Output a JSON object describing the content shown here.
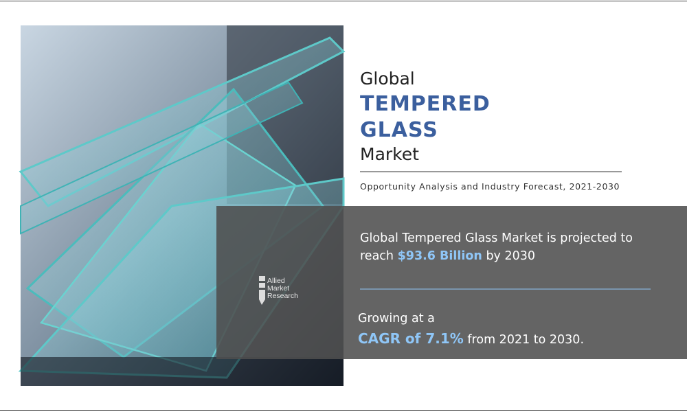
{
  "header": {
    "pre": "Global",
    "title_lines": [
      "TEMPERED",
      "GLASS"
    ],
    "post": "Market"
  },
  "subtitle": "Opportunity Analysis and Industry Forecast, 2021-2030",
  "projection": {
    "line1": "Global Tempered Glass Market is projected to",
    "prefix": "reach",
    "value": "$93.6 Billion",
    "suffix": "by 2030"
  },
  "growth": {
    "line1": "Growing at a",
    "highlight": "CAGR of 7.1%",
    "suffix": "from 2021 to 2030."
  },
  "logo": [
    "Allied",
    "Market",
    "Research"
  ]
}
